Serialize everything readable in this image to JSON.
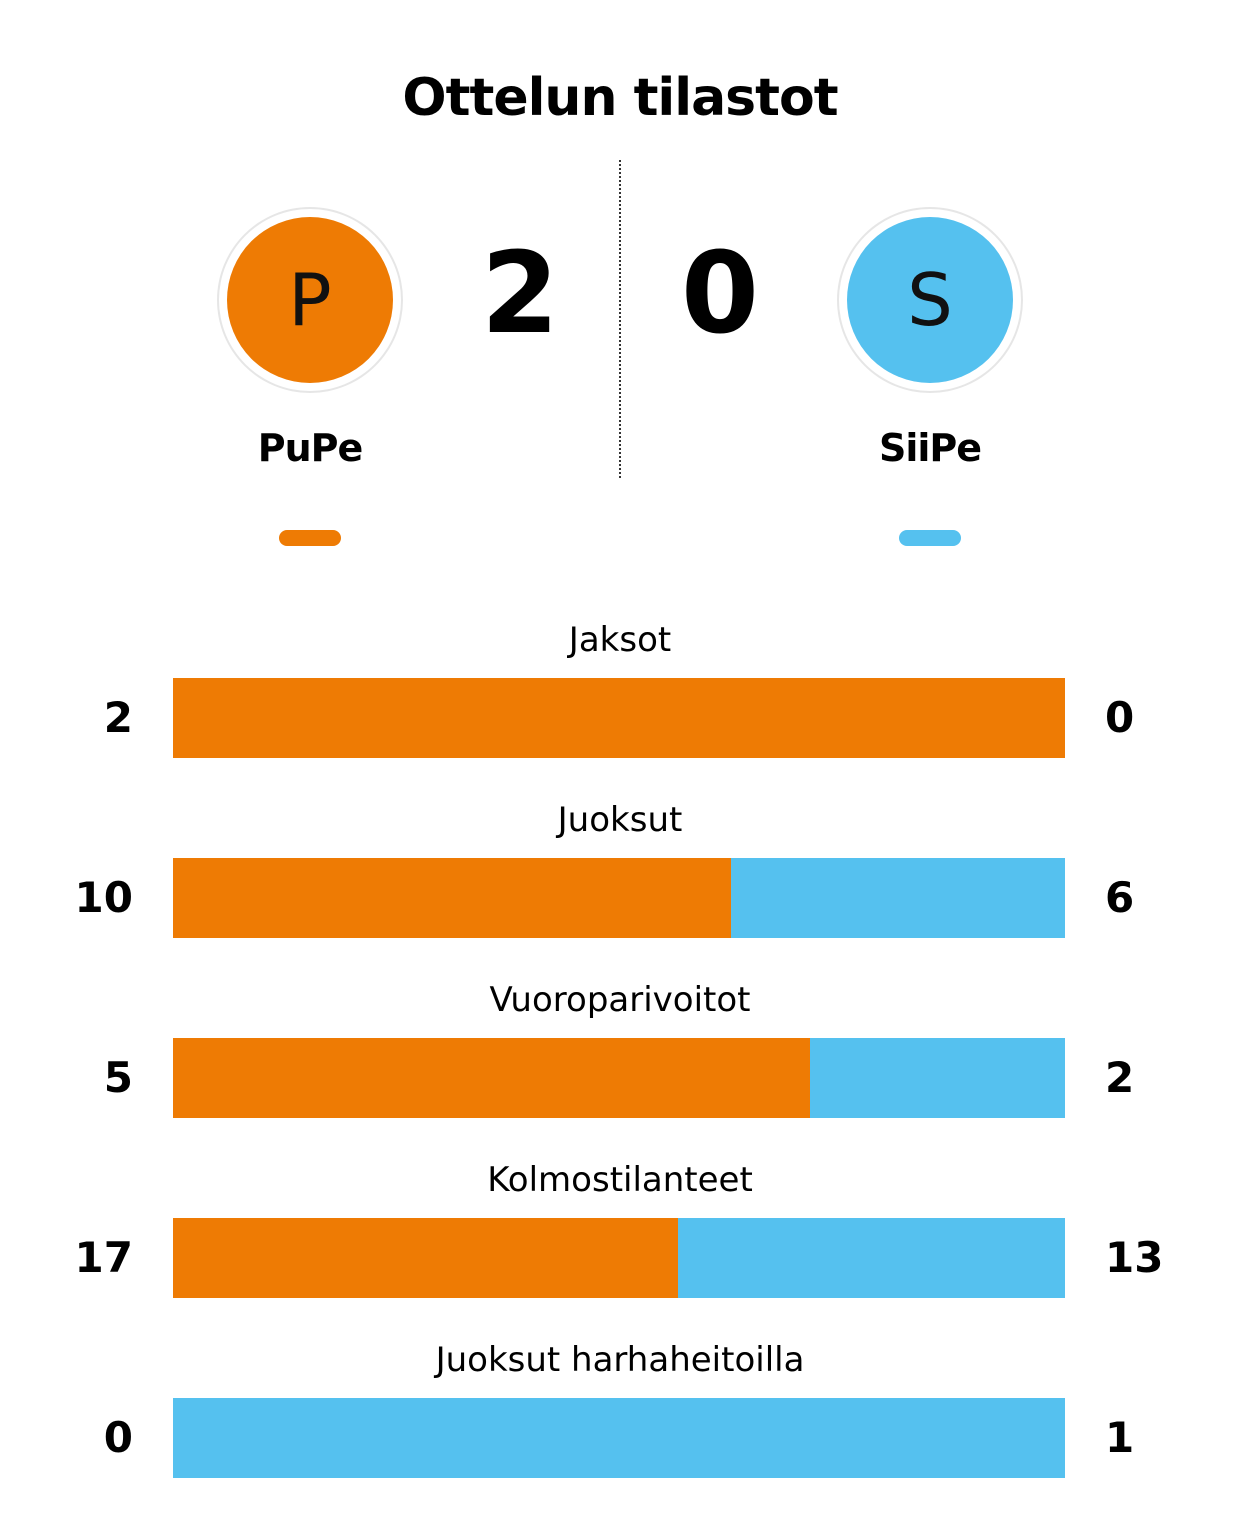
{
  "title": "Ottelun tilastot",
  "colors": {
    "home": "#ee7b04",
    "away": "#55c1ef"
  },
  "match": {
    "home": {
      "initial": "P",
      "name": "PuPe",
      "score": "2"
    },
    "away": {
      "initial": "S",
      "name": "SiiPe",
      "score": "0"
    }
  },
  "chart_data": {
    "type": "bar",
    "orientation": "horizontal",
    "stacking": "normalized",
    "categories": [
      "Jaksot",
      "Juoksut",
      "Vuoroparivoitot",
      "Kolmostilanteet",
      "Juoksut harhaheitoilla"
    ],
    "series": [
      {
        "name": "PuPe",
        "values": [
          2,
          10,
          5,
          17,
          0
        ]
      },
      {
        "name": "SiiPe",
        "values": [
          0,
          6,
          2,
          13,
          1
        ]
      }
    ]
  }
}
